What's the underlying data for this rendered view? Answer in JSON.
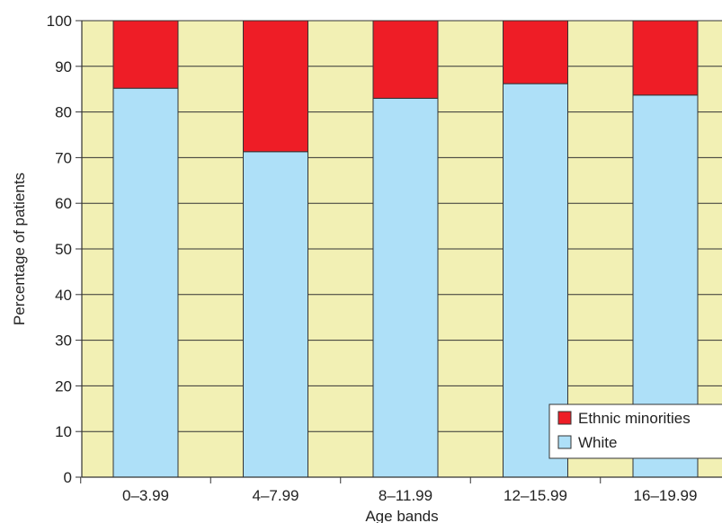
{
  "chart_data": {
    "type": "bar",
    "stacked": true,
    "percent": true,
    "title": "",
    "xlabel": "Age bands",
    "ylabel": "Percentage of patients",
    "categories": [
      "0–3.99",
      "4–7.99",
      "8–11.99",
      "12–15.99",
      "16–19.99"
    ],
    "series": [
      {
        "name": "White",
        "color": "#aee0f8",
        "values": [
          85.2,
          71.3,
          83.0,
          86.2,
          83.7
        ]
      },
      {
        "name": "Ethnic minorities",
        "color": "#ee1d26",
        "values": [
          14.8,
          28.7,
          17.0,
          13.8,
          16.3
        ]
      }
    ],
    "ylim": [
      0,
      100
    ],
    "yticks": [
      0,
      10,
      20,
      30,
      40,
      50,
      60,
      70,
      80,
      90,
      100
    ],
    "grid": true,
    "plot_background": "#f2f0b4",
    "legend": {
      "position": "bottom-right",
      "entries": [
        {
          "label": "Ethnic minorities",
          "color": "#ee1d26"
        },
        {
          "label": "White",
          "color": "#aee0f8"
        }
      ]
    }
  }
}
